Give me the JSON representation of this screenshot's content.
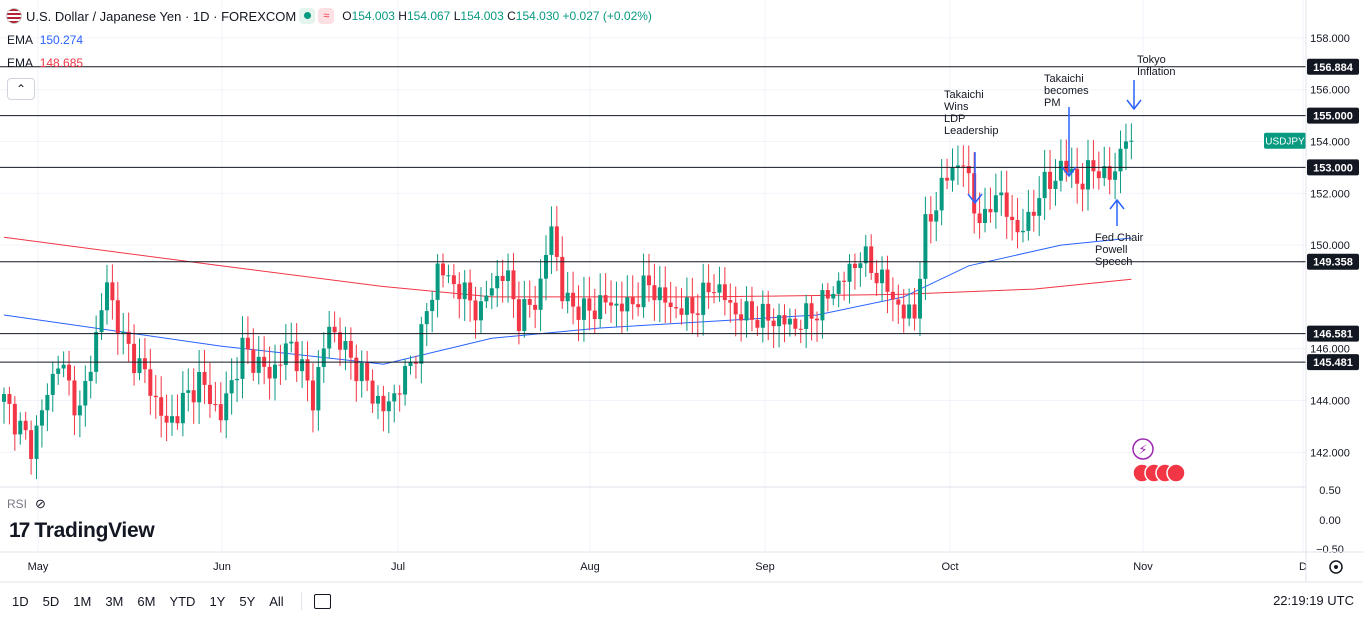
{
  "header": {
    "title": "U.S. Dollar / Japanese Yen · 1D · FOREXCOM",
    "ohlc": {
      "open_label": "O",
      "open": "154.003",
      "high_label": "H",
      "high": "154.067",
      "low_label": "L",
      "low": "154.003",
      "close_label": "C",
      "close": "154.030",
      "change": "+0.027 (+0.02%)"
    }
  },
  "indicators": [
    {
      "label": "EMA",
      "value": "150.274",
      "color": "#2962ff"
    },
    {
      "label": "EMA",
      "value": "148.685",
      "color": "#f23645"
    }
  ],
  "rsi_label": "RSI",
  "logo_text": "TradingView",
  "symbol_badge": "USDJPY",
  "timeframes": [
    "1D",
    "5D",
    "1M",
    "3M",
    "6M",
    "YTD",
    "1Y",
    "5Y",
    "All"
  ],
  "clock": "22:19:19 UTC",
  "colors": {
    "up": "#089981",
    "down": "#f23645",
    "ema_fast": "#2962ff",
    "ema_slow": "#f23645"
  },
  "chart_data": {
    "type": "candlestick",
    "x_axis_labels": [
      "May",
      "Jun",
      "Jul",
      "Aug",
      "Sep",
      "Oct",
      "Nov",
      "D"
    ],
    "y_ticks": [
      "158.000",
      "156.000",
      "154.000",
      "152.000",
      "150.000",
      "146.000",
      "144.000",
      "142.000"
    ],
    "rsi_ticks": [
      "0.50",
      "0.00",
      "−0.50"
    ],
    "ylim": [
      141,
      159.5
    ],
    "levels": [
      "156.884",
      "155.000",
      "153.000",
      "149.358",
      "146.581",
      "145.481"
    ],
    "annotations": [
      {
        "text": "Takaichi Wins LDP Leadership",
        "direction": "down"
      },
      {
        "text": "Takaichi becomes PM",
        "direction": "down"
      },
      {
        "text": "Tokyo Inflation",
        "direction": "down"
      },
      {
        "text": "Fed Chair Powell Speech",
        "direction": "up"
      }
    ],
    "close_path": [
      [
        0,
        144.0
      ],
      [
        5,
        142.2
      ],
      [
        10,
        145.6
      ],
      [
        14,
        143.5
      ],
      [
        19,
        148.5
      ],
      [
        22,
        146.3
      ],
      [
        26,
        145.0
      ],
      [
        30,
        143.0
      ],
      [
        36,
        144.8
      ],
      [
        40,
        143.4
      ],
      [
        44,
        146.0
      ],
      [
        49,
        145.0
      ],
      [
        53,
        146.2
      ],
      [
        57,
        144.1
      ],
      [
        60,
        146.9
      ],
      [
        64,
        145.6
      ],
      [
        66,
        145.0
      ],
      [
        70,
        143.6
      ],
      [
        74,
        144.9
      ],
      [
        77,
        146.5
      ],
      [
        80,
        149.1
      ],
      [
        84,
        148.3
      ],
      [
        88,
        147.4
      ],
      [
        90,
        148.6
      ],
      [
        93,
        148.8
      ],
      [
        95,
        147.1
      ],
      [
        99,
        148.3
      ],
      [
        101,
        150.9
      ],
      [
        103,
        148.0
      ],
      [
        107,
        147.4
      ],
      [
        111,
        147.8
      ],
      [
        115,
        147.6
      ],
      [
        119,
        148.5
      ],
      [
        123,
        147.6
      ],
      [
        127,
        147.5
      ],
      [
        131,
        148.5
      ],
      [
        135,
        147.4
      ],
      [
        140,
        147.2
      ],
      [
        143,
        147.1
      ],
      [
        146,
        146.9
      ],
      [
        150,
        147.5
      ],
      [
        153,
        148.3
      ],
      [
        155,
        148.7
      ],
      [
        158,
        149.6
      ],
      [
        161,
        148.9
      ],
      [
        164,
        148.0
      ],
      [
        166,
        147.3
      ],
      [
        168,
        147.4
      ],
      [
        170,
        150.6
      ],
      [
        173,
        152.2
      ],
      [
        175,
        153.0
      ],
      [
        177,
        153.2
      ],
      [
        179,
        151.5
      ],
      [
        181,
        150.8
      ],
      [
        183,
        152.2
      ],
      [
        185,
        151.2
      ],
      [
        187,
        150.6
      ],
      [
        189,
        150.8
      ],
      [
        191,
        152.1
      ],
      [
        193,
        152.4
      ],
      [
        195,
        153.0
      ],
      [
        197,
        152.8
      ],
      [
        199,
        152.3
      ],
      [
        201,
        153.2
      ],
      [
        203,
        152.5
      ],
      [
        205,
        153.0
      ],
      [
        207,
        154.1
      ],
      [
        208,
        154.03
      ]
    ],
    "ema_fast": [
      [
        0,
        147.3
      ],
      [
        40,
        146.1
      ],
      [
        70,
        145.4
      ],
      [
        90,
        146.4
      ],
      [
        110,
        146.8
      ],
      [
        150,
        147.3
      ],
      [
        166,
        148.0
      ],
      [
        178,
        149.2
      ],
      [
        195,
        150.0
      ],
      [
        208,
        150.274
      ]
    ],
    "ema_slow": [
      [
        0,
        150.3
      ],
      [
        40,
        149.2
      ],
      [
        70,
        148.4
      ],
      [
        90,
        148.0
      ],
      [
        130,
        148.0
      ],
      [
        166,
        148.1
      ],
      [
        190,
        148.3
      ],
      [
        208,
        148.685
      ]
    ]
  }
}
